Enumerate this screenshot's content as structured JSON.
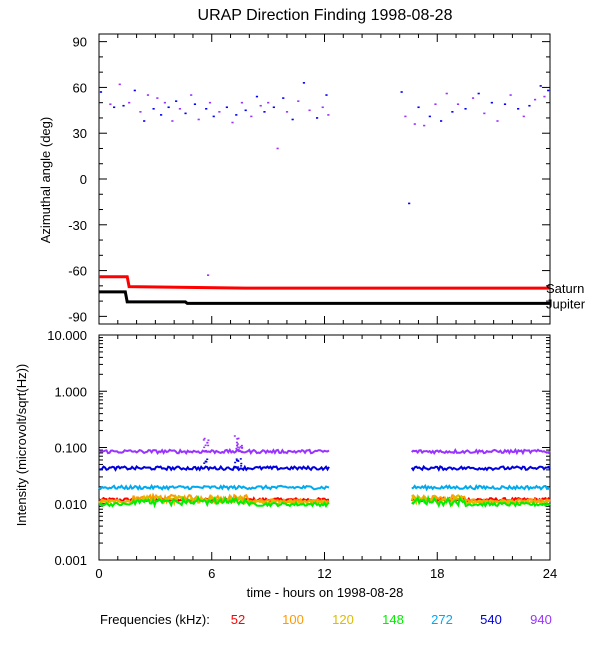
{
  "chart_data": [
    {
      "type": "scatter",
      "panel": "top",
      "title": "URAP Direction Finding  1998-08-28",
      "ylabel": "Azimuthal angle (deg)",
      "xlim": [
        0,
        24
      ],
      "ylim": [
        -95,
        95
      ],
      "yticks": [
        "90",
        "60",
        "30",
        "0",
        "-30",
        "-60",
        "-90"
      ],
      "ytick_values": [
        90,
        60,
        30,
        0,
        -30,
        -60,
        -90
      ],
      "series": [
        {
          "name": "Saturn",
          "kind": "line",
          "color": "#ff0000",
          "x": [
            0,
            1.5,
            1.6,
            7.8,
            24
          ],
          "y": [
            -64,
            -64,
            -70.5,
            -71.5,
            -71.5
          ]
        },
        {
          "name": "Jupiter",
          "kind": "line",
          "color": "#000000",
          "x": [
            0,
            1.4,
            1.5,
            4.6,
            4.7,
            24
          ],
          "y": [
            -74,
            -74,
            -80.5,
            -80.5,
            -81.5,
            -81.5
          ]
        },
        {
          "name": "direction finding points",
          "kind": "scatter",
          "colors": [
            "#0000ff",
            "#9933ff"
          ],
          "points": [
            [
              0.1,
              57
            ],
            [
              0.6,
              49
            ],
            [
              0.8,
              47
            ],
            [
              1.1,
              62
            ],
            [
              1.3,
              48
            ],
            [
              1.6,
              50
            ],
            [
              1.9,
              58
            ],
            [
              2.2,
              44
            ],
            [
              2.4,
              38
            ],
            [
              2.6,
              55
            ],
            [
              2.9,
              46
            ],
            [
              3.1,
              53
            ],
            [
              3.3,
              42
            ],
            [
              3.5,
              50
            ],
            [
              3.7,
              47
            ],
            [
              3.9,
              38
            ],
            [
              4.1,
              51
            ],
            [
              4.3,
              46
            ],
            [
              4.6,
              43
            ],
            [
              4.9,
              55
            ],
            [
              5.1,
              49
            ],
            [
              5.3,
              39
            ],
            [
              5.7,
              46
            ],
            [
              5.9,
              50
            ],
            [
              6.1,
              41
            ],
            [
              6.4,
              44
            ],
            [
              6.8,
              47
            ],
            [
              7.1,
              37
            ],
            [
              7.3,
              42
            ],
            [
              7.6,
              50
            ],
            [
              7.8,
              45
            ],
            [
              8.1,
              41
            ],
            [
              8.4,
              54
            ],
            [
              8.6,
              48
            ],
            [
              8.8,
              44
            ],
            [
              9.0,
              50
            ],
            [
              9.3,
              47
            ],
            [
              9.5,
              20
            ],
            [
              9.8,
              53
            ],
            [
              10.0,
              44
            ],
            [
              10.3,
              39
            ],
            [
              10.6,
              51
            ],
            [
              10.9,
              63
            ],
            [
              11.2,
              45
            ],
            [
              11.6,
              40
            ],
            [
              11.9,
              47
            ],
            [
              12.1,
              55
            ],
            [
              12.2,
              42
            ],
            [
              16.1,
              57
            ],
            [
              16.3,
              41
            ],
            [
              16.5,
              -16
            ],
            [
              16.8,
              36
            ],
            [
              17.0,
              47
            ],
            [
              17.3,
              35
            ],
            [
              17.6,
              41
            ],
            [
              17.9,
              49
            ],
            [
              18.2,
              38
            ],
            [
              18.5,
              56
            ],
            [
              18.8,
              44
            ],
            [
              19.1,
              49
            ],
            [
              19.5,
              46
            ],
            [
              19.9,
              53
            ],
            [
              20.2,
              56
            ],
            [
              20.5,
              43
            ],
            [
              20.9,
              50
            ],
            [
              21.2,
              38
            ],
            [
              21.6,
              49
            ],
            [
              21.9,
              55
            ],
            [
              22.3,
              46
            ],
            [
              22.6,
              41
            ],
            [
              22.9,
              48
            ],
            [
              23.2,
              52
            ],
            [
              23.5,
              61
            ],
            [
              23.7,
              54
            ],
            [
              23.9,
              58
            ],
            [
              5.8,
              -63
            ]
          ]
        }
      ],
      "annotations": [
        "Saturn",
        "Jupiter"
      ]
    },
    {
      "type": "line",
      "panel": "bottom",
      "ylabel": "Intensity (microvolt/sqrt(Hz))",
      "xlabel": "time - hours on 1998-08-28",
      "xlim": [
        0,
        24
      ],
      "xticks": [
        "0",
        "6",
        "12",
        "18",
        "24"
      ],
      "xtick_values": [
        0,
        6,
        12,
        18,
        24
      ],
      "yscale": "log",
      "ylim": [
        0.001,
        10
      ],
      "yticks": [
        "10.000",
        "1.000",
        "0.100",
        "0.010",
        "0.001"
      ],
      "ytick_values": [
        10,
        1,
        0.1,
        0.01,
        0.001
      ],
      "gaps": [
        [
          12.3,
          16.6
        ]
      ],
      "series": [
        {
          "name": "52",
          "color": "#ff0000",
          "level": 0.0118
        },
        {
          "name": "100",
          "color": "#ff9900",
          "level": 0.0112
        },
        {
          "name": "120",
          "color": "#ddbb00",
          "level": 0.0107
        },
        {
          "name": "148",
          "color": "#00ee00",
          "level": 0.0098
        },
        {
          "name": "272",
          "color": "#00aaee",
          "level": 0.0195
        },
        {
          "name": "540",
          "color": "#0000dd",
          "level": 0.043
        },
        {
          "name": "940",
          "color": "#9933ff",
          "level": 0.085
        }
      ]
    }
  ],
  "legend": {
    "label": "Frequencies (kHz):",
    "items": [
      {
        "text": "52",
        "color": "#ff0000"
      },
      {
        "text": "100",
        "color": "#ff9900"
      },
      {
        "text": "120",
        "color": "#ddbb00"
      },
      {
        "text": "148",
        "color": "#00ee00"
      },
      {
        "text": "272",
        "color": "#00aaee"
      },
      {
        "text": "540",
        "color": "#0000dd"
      },
      {
        "text": "940",
        "color": "#9933ff"
      }
    ]
  }
}
